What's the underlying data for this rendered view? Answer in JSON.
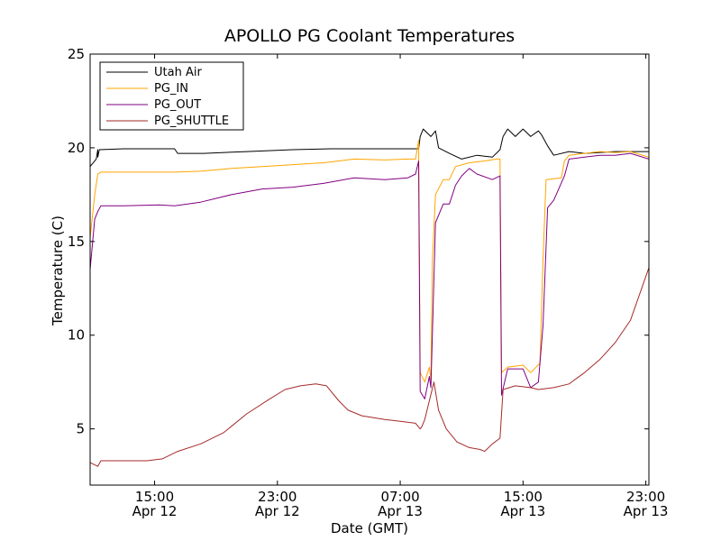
{
  "chart_data": {
    "type": "line",
    "title": "APOLLO PG Coolant Temperatures",
    "xlabel": "Date (GMT)",
    "ylabel": "Temperature (C)",
    "x_unit": "hours since Apr 12 00:00 GMT",
    "xlim": [
      10.8,
      47.2
    ],
    "ylim": [
      2,
      25
    ],
    "yticks": [
      5,
      10,
      15,
      20,
      25
    ],
    "xticks": [
      {
        "value": 15,
        "line1": "15:00",
        "line2": "Apr 12"
      },
      {
        "value": 23,
        "line1": "23:00",
        "line2": "Apr 12"
      },
      {
        "value": 31,
        "line1": "07:00",
        "line2": "Apr 13"
      },
      {
        "value": 39,
        "line1": "15:00",
        "line2": "Apr 13"
      },
      {
        "value": 47,
        "line1": "23:00",
        "line2": "Apr 13"
      }
    ],
    "grid": false,
    "legend_position": "top-left",
    "series": [
      {
        "name": "Utah Air",
        "color": "#000000",
        "points": [
          [
            10.8,
            19.0
          ],
          [
            11.2,
            19.4
          ],
          [
            11.3,
            19.9
          ],
          [
            11.3,
            19.5
          ],
          [
            11.4,
            19.9
          ],
          [
            13.0,
            19.95
          ],
          [
            15.3,
            19.95
          ],
          [
            16.3,
            19.95
          ],
          [
            16.5,
            19.7
          ],
          [
            18.2,
            19.7
          ],
          [
            21.0,
            19.8
          ],
          [
            24.0,
            19.9
          ],
          [
            26.5,
            19.95
          ],
          [
            29.0,
            19.95
          ],
          [
            31.5,
            19.95
          ],
          [
            32.2,
            19.95
          ],
          [
            32.3,
            20.6
          ],
          [
            32.5,
            21.0
          ],
          [
            33.0,
            20.6
          ],
          [
            33.3,
            20.9
          ],
          [
            33.5,
            20.0
          ],
          [
            34.2,
            19.7
          ],
          [
            35.0,
            19.4
          ],
          [
            36.0,
            19.6
          ],
          [
            37.0,
            19.5
          ],
          [
            37.5,
            19.9
          ],
          [
            37.7,
            20.6
          ],
          [
            38.0,
            21.0
          ],
          [
            38.5,
            20.6
          ],
          [
            39.0,
            21.0
          ],
          [
            39.5,
            20.6
          ],
          [
            40.0,
            20.9
          ],
          [
            40.2,
            20.7
          ],
          [
            40.6,
            20.1
          ],
          [
            41.0,
            19.6
          ],
          [
            42.0,
            19.8
          ],
          [
            43.0,
            19.7
          ],
          [
            44.0,
            19.75
          ],
          [
            45.0,
            19.8
          ],
          [
            46.0,
            19.8
          ],
          [
            47.2,
            19.8
          ]
        ]
      },
      {
        "name": "PG_IN",
        "color": "#ffa500",
        "points": [
          [
            10.8,
            15.2
          ],
          [
            11.1,
            17.5
          ],
          [
            11.3,
            18.6
          ],
          [
            11.5,
            18.7
          ],
          [
            13.0,
            18.7
          ],
          [
            15.3,
            18.7
          ],
          [
            16.3,
            18.7
          ],
          [
            18.0,
            18.75
          ],
          [
            20.0,
            18.9
          ],
          [
            22.0,
            19.0
          ],
          [
            24.0,
            19.1
          ],
          [
            26.0,
            19.2
          ],
          [
            27.0,
            19.3
          ],
          [
            28.0,
            19.4
          ],
          [
            30.0,
            19.35
          ],
          [
            31.5,
            19.4
          ],
          [
            32.0,
            19.4
          ],
          [
            32.2,
            20.4
          ],
          [
            32.3,
            8.0
          ],
          [
            32.6,
            7.5
          ],
          [
            32.9,
            8.3
          ],
          [
            33.0,
            7.6
          ],
          [
            33.1,
            14.0
          ],
          [
            33.3,
            17.5
          ],
          [
            33.8,
            18.3
          ],
          [
            34.2,
            18.3
          ],
          [
            34.6,
            19.0
          ],
          [
            35.5,
            19.2
          ],
          [
            36.5,
            19.3
          ],
          [
            37.3,
            19.4
          ],
          [
            37.5,
            19.4
          ],
          [
            37.6,
            8.0
          ],
          [
            38.0,
            8.3
          ],
          [
            39.0,
            8.4
          ],
          [
            39.5,
            8.0
          ],
          [
            40.1,
            8.5
          ],
          [
            40.3,
            14.0
          ],
          [
            40.5,
            18.3
          ],
          [
            41.5,
            18.4
          ],
          [
            41.7,
            19.3
          ],
          [
            42.0,
            19.6
          ],
          [
            43.0,
            19.7
          ],
          [
            44.0,
            19.8
          ],
          [
            45.0,
            19.75
          ],
          [
            46.0,
            19.8
          ],
          [
            47.2,
            19.5
          ]
        ]
      },
      {
        "name": "PG_OUT",
        "color": "#800080",
        "points": [
          [
            10.8,
            13.5
          ],
          [
            11.1,
            16.2
          ],
          [
            11.3,
            16.6
          ],
          [
            11.5,
            16.9
          ],
          [
            13.0,
            16.9
          ],
          [
            15.3,
            16.95
          ],
          [
            16.3,
            16.9
          ],
          [
            18.0,
            17.1
          ],
          [
            20.0,
            17.5
          ],
          [
            22.0,
            17.8
          ],
          [
            24.0,
            17.9
          ],
          [
            26.0,
            18.1
          ],
          [
            28.0,
            18.4
          ],
          [
            30.0,
            18.3
          ],
          [
            31.5,
            18.4
          ],
          [
            32.0,
            18.6
          ],
          [
            32.2,
            19.3
          ],
          [
            32.3,
            7.0
          ],
          [
            32.6,
            6.6
          ],
          [
            32.9,
            7.8
          ],
          [
            33.0,
            7.2
          ],
          [
            33.3,
            16.0
          ],
          [
            33.8,
            17.0
          ],
          [
            34.2,
            17.0
          ],
          [
            34.6,
            18.0
          ],
          [
            35.0,
            18.5
          ],
          [
            35.5,
            18.9
          ],
          [
            36.0,
            18.6
          ],
          [
            37.0,
            18.3
          ],
          [
            37.5,
            18.5
          ],
          [
            37.6,
            6.8
          ],
          [
            38.0,
            8.2
          ],
          [
            39.0,
            8.2
          ],
          [
            39.5,
            7.2
          ],
          [
            40.0,
            7.5
          ],
          [
            40.3,
            10.5
          ],
          [
            40.6,
            16.8
          ],
          [
            41.0,
            17.2
          ],
          [
            41.7,
            18.5
          ],
          [
            42.0,
            19.4
          ],
          [
            43.0,
            19.5
          ],
          [
            44.0,
            19.6
          ],
          [
            45.0,
            19.6
          ],
          [
            46.0,
            19.7
          ],
          [
            47.2,
            19.4
          ]
        ]
      },
      {
        "name": "PG_SHUTTLE",
        "color": "#a52a2a",
        "points": [
          [
            10.8,
            3.2
          ],
          [
            11.3,
            3.0
          ],
          [
            11.5,
            3.3
          ],
          [
            13.0,
            3.3
          ],
          [
            14.5,
            3.3
          ],
          [
            15.5,
            3.4
          ],
          [
            16.5,
            3.8
          ],
          [
            18.0,
            4.2
          ],
          [
            19.5,
            4.8
          ],
          [
            21.0,
            5.8
          ],
          [
            22.5,
            6.6
          ],
          [
            23.5,
            7.1
          ],
          [
            24.5,
            7.3
          ],
          [
            25.5,
            7.4
          ],
          [
            26.2,
            7.3
          ],
          [
            27.0,
            6.5
          ],
          [
            27.6,
            6.0
          ],
          [
            28.5,
            5.7
          ],
          [
            30.0,
            5.5
          ],
          [
            31.0,
            5.4
          ],
          [
            32.0,
            5.3
          ],
          [
            32.3,
            5.0
          ],
          [
            32.4,
            5.1
          ],
          [
            32.6,
            5.5
          ],
          [
            33.2,
            7.5
          ],
          [
            33.5,
            6.0
          ],
          [
            34.0,
            5.0
          ],
          [
            34.7,
            4.3
          ],
          [
            35.5,
            4.0
          ],
          [
            36.2,
            3.9
          ],
          [
            36.5,
            3.8
          ],
          [
            37.0,
            4.2
          ],
          [
            37.5,
            4.5
          ],
          [
            37.7,
            7.1
          ],
          [
            38.5,
            7.3
          ],
          [
            39.5,
            7.2
          ],
          [
            40.0,
            7.1
          ],
          [
            41.0,
            7.2
          ],
          [
            42.0,
            7.4
          ],
          [
            43.0,
            8.0
          ],
          [
            44.0,
            8.7
          ],
          [
            45.0,
            9.6
          ],
          [
            46.0,
            10.8
          ],
          [
            47.2,
            13.6
          ]
        ]
      }
    ]
  }
}
